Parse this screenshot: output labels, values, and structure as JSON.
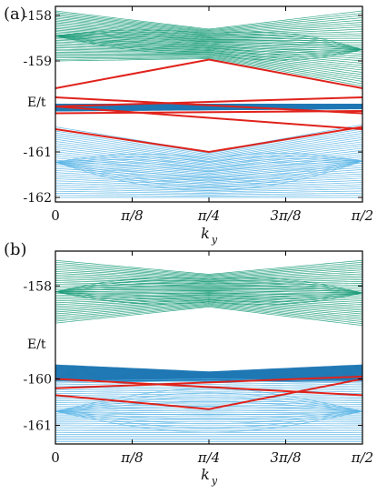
{
  "chart_data": [
    {
      "panel_label": "(a)",
      "type": "line",
      "ylabel": "E/t",
      "xlabel": "k",
      "xlabel_subscript": "y",
      "xlim": [
        0,
        1.5708
      ],
      "ylim": [
        -162.1,
        -157.8
      ],
      "x_ticks": [
        {
          "value": 0,
          "label": "0"
        },
        {
          "value": 0.3927,
          "label": "π/8"
        },
        {
          "value": 0.7854,
          "label": "π/4"
        },
        {
          "value": 1.1781,
          "label": "3π/8"
        },
        {
          "value": 1.5708,
          "label": "π/2"
        }
      ],
      "y_ticks": [
        {
          "value": -158,
          "label": "-158"
        },
        {
          "value": -159,
          "label": "-159"
        },
        {
          "value": -161,
          "label": "-161"
        },
        {
          "value": -162,
          "label": "-162"
        }
      ],
      "grid": false,
      "colors": {
        "upper_band": "#1a9c79",
        "middle_band": "#1f78b4",
        "lower_band": "#58b4e6",
        "edge_states": "#e0221b"
      },
      "bands": [
        {
          "name": "upper",
          "x": [
            0,
            0.7854,
            1.5708
          ],
          "top": [
            -157.9,
            -158.3,
            -157.9
          ],
          "bottom": [
            -159.0,
            -158.95,
            -159.6
          ]
        },
        {
          "name": "lower",
          "x": [
            0,
            0.7854,
            1.5708
          ],
          "top": [
            -160.45,
            -161.0,
            -160.4
          ],
          "bottom": [
            -162.0,
            -162.0,
            -162.0
          ]
        },
        {
          "name": "middle",
          "x": [
            0,
            1.5708
          ],
          "top": [
            -159.95,
            -159.95
          ],
          "bottom": [
            -160.1,
            -160.05
          ]
        }
      ],
      "series": [
        {
          "x": [
            0,
            0.7854,
            1.5708
          ],
          "values": [
            -159.6,
            -158.97,
            -159.6
          ]
        },
        {
          "x": [
            0,
            1.5708
          ],
          "values": [
            -160.0,
            -159.8
          ]
        },
        {
          "x": [
            0,
            1.5708
          ],
          "values": [
            -159.8,
            -160.15
          ]
        },
        {
          "x": [
            0,
            1.5708
          ],
          "values": [
            -160.15,
            -160.1
          ]
        },
        {
          "x": [
            0,
            1.5708
          ],
          "values": [
            -160.0,
            -160.5
          ]
        },
        {
          "x": [
            0,
            0.7854,
            1.5708
          ],
          "values": [
            -160.5,
            -161.0,
            -160.45
          ]
        }
      ]
    },
    {
      "panel_label": "(b)",
      "type": "line",
      "ylabel": "E/t",
      "xlabel": "k",
      "xlabel_subscript": "y",
      "xlim": [
        0,
        1.5708
      ],
      "ylim": [
        -161.4,
        -157.25
      ],
      "x_ticks": [
        {
          "value": 0,
          "label": "0"
        },
        {
          "value": 0.3927,
          "label": "π/8"
        },
        {
          "value": 0.7854,
          "label": "π/4"
        },
        {
          "value": 1.1781,
          "label": "3π/8"
        },
        {
          "value": 1.5708,
          "label": "π/2"
        }
      ],
      "y_ticks": [
        {
          "value": -158,
          "label": "-158"
        },
        {
          "value": -160,
          "label": "-160"
        },
        {
          "value": -161,
          "label": "-161"
        }
      ],
      "grid": false,
      "colors": {
        "upper_band": "#1a9c79",
        "middle_band": "#1f78b4",
        "lower_band": "#58b4e6",
        "edge_states": "#e0221b"
      },
      "bands": [
        {
          "name": "upper",
          "x": [
            0,
            0.7854,
            1.5708
          ],
          "top": [
            -157.45,
            -157.75,
            -157.45
          ],
          "bottom": [
            -158.8,
            -158.45,
            -158.85
          ]
        },
        {
          "name": "middle",
          "x": [
            0,
            0.7854,
            1.5708
          ],
          "top": [
            -159.7,
            -159.85,
            -159.7
          ],
          "bottom": [
            -160.05,
            -160.05,
            -160.05
          ]
        },
        {
          "name": "lower",
          "x": [
            0,
            0.7854,
            1.5708
          ],
          "top": [
            -160.05,
            -160.0,
            -160.05
          ],
          "bottom": [
            -161.35,
            -161.35,
            -161.35
          ]
        }
      ],
      "series": [
        {
          "x": [
            0,
            1.5708
          ],
          "values": [
            -160.2,
            -159.95
          ]
        },
        {
          "x": [
            0,
            0.7854,
            1.5708
          ],
          "values": [
            -160.35,
            -160.65,
            -160.0
          ]
        },
        {
          "x": [
            0,
            1.5708
          ],
          "values": [
            -160.0,
            -160.35
          ]
        }
      ]
    }
  ]
}
